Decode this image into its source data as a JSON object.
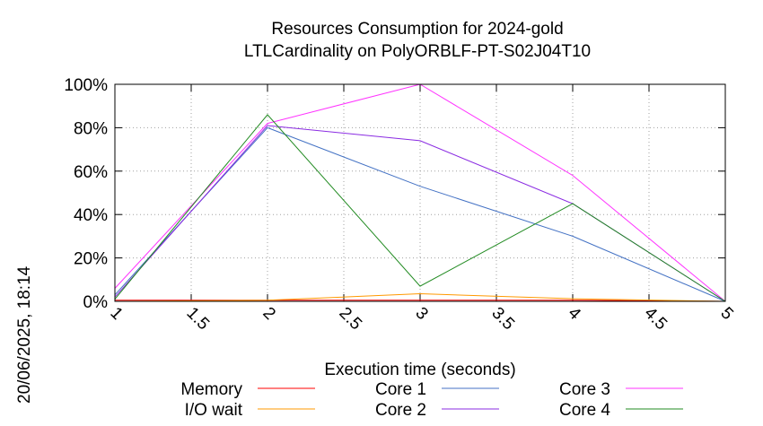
{
  "chart_data": {
    "type": "line",
    "title": "Resources Consumption for 2024-gold",
    "subtitle": "LTLCardinality on PolyORBLF-PT-S02J04T10",
    "xlabel": "Execution time (seconds)",
    "ylabel": "",
    "xlim": [
      1,
      5
    ],
    "ylim": [
      0,
      100
    ],
    "x_ticks": [
      "1",
      "1.5",
      "2",
      "2.5",
      "3",
      "3.5",
      "4",
      "4.5",
      "5"
    ],
    "y_ticks": [
      "0%",
      "20%",
      "40%",
      "60%",
      "80%",
      "100%"
    ],
    "grid": true,
    "legend_position": "bottom",
    "timestamp": "20/06/2025, 18:14",
    "x": [
      1,
      2,
      3,
      4,
      5
    ],
    "series": [
      {
        "name": "Memory",
        "color": "#ff0000",
        "values": [
          0.5,
          0.5,
          0.5,
          0.5,
          0
        ]
      },
      {
        "name": "I/O wait",
        "color": "#ff9900",
        "values": [
          0,
          0.5,
          3.5,
          1.2,
          0
        ]
      },
      {
        "name": "Core 1",
        "color": "#4472c4",
        "values": [
          3,
          80,
          53,
          30,
          0
        ]
      },
      {
        "name": "Core 2",
        "color": "#8a2be2",
        "values": [
          2,
          81,
          74,
          45,
          0
        ]
      },
      {
        "name": "Core 3",
        "color": "#ff33ff",
        "values": [
          6,
          82,
          100,
          58,
          0
        ]
      },
      {
        "name": "Core 4",
        "color": "#228b22",
        "values": [
          1,
          86,
          7,
          45,
          0
        ]
      }
    ]
  }
}
